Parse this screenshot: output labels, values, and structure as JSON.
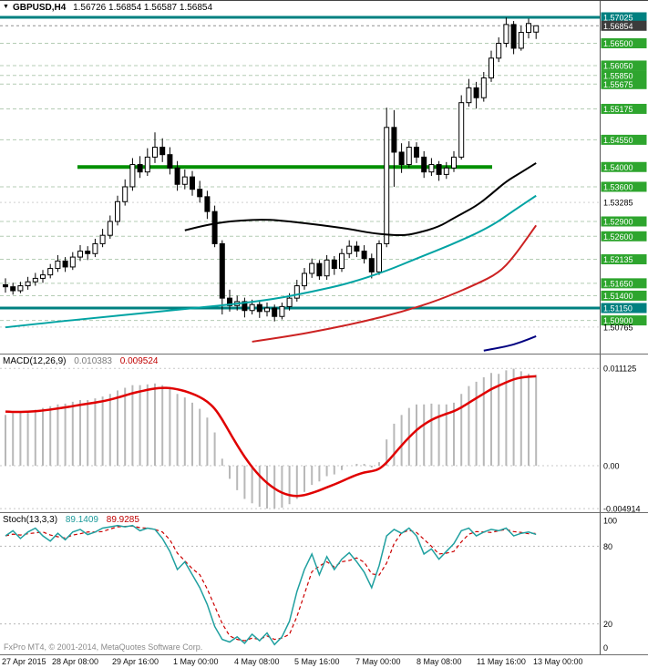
{
  "header": {
    "symbol_timeframe": "GBPUSD,H4",
    "ohlc_text": "1.56726 1.56854 1.56587 1.56854"
  },
  "footer": {
    "copyright": "FxPro MT4, © 2001-2014, MetaQuotes Software Corp."
  },
  "colors": {
    "teal_line": "#008080",
    "green_label": "#2ea52e",
    "green_line": "#009000",
    "grid_green": "#b4ccb4",
    "grid_plain": "#d0d0d0",
    "current_label_bg": "#3c3c3c",
    "candle_up": "#ffffff",
    "candle_down": "#000000",
    "macd_hist": "#b8b8b8",
    "macd_signal": "#e00000",
    "stoch_k": "#20a0a0",
    "stoch_d": "#cc0000",
    "ma_black": "#000000",
    "ma_teal": "#00a3a3",
    "ma_red": "#cc2222",
    "ma_blue": "#000080"
  },
  "x_axis": {
    "labels": [
      "27 Apr 2015",
      "28 Apr 08:00",
      "29 Apr 16:00",
      "1 May 00:00",
      "4 May 08:00",
      "5 May 16:00",
      "7 May 00:00",
      "8 May 08:00",
      "11 May 16:00",
      "13 May 00:00"
    ]
  },
  "chart_data": [
    {
      "type": "candlestick",
      "title": "GBPUSD,H4",
      "ohlc_current": {
        "open": 1.56726,
        "high": 1.56854,
        "low": 1.56587,
        "close": 1.56854
      },
      "levels": [
        {
          "label": "1.57025",
          "price": 1.57025,
          "style": "teal"
        },
        {
          "label": "1.56854",
          "price": 1.56854,
          "style": "current"
        },
        {
          "label": "1.56500",
          "price": 1.565,
          "style": "green"
        },
        {
          "label": "1.56050",
          "price": 1.5605,
          "style": "green"
        },
        {
          "label": "1.55850",
          "price": 1.5585,
          "style": "green"
        },
        {
          "label": "1.55675",
          "price": 1.55675,
          "style": "green"
        },
        {
          "label": "1.55175",
          "price": 1.55175,
          "style": "green"
        },
        {
          "label": "1.54550",
          "price": 1.5455,
          "style": "green"
        },
        {
          "label": "1.54000",
          "price": 1.54,
          "style": "green-thick"
        },
        {
          "label": "1.53600",
          "price": 1.536,
          "style": "green"
        },
        {
          "label": "1.53285",
          "price": 1.53285,
          "style": "plain"
        },
        {
          "label": "1.52900",
          "price": 1.529,
          "style": "green"
        },
        {
          "label": "1.52600",
          "price": 1.526,
          "style": "green"
        },
        {
          "label": "1.52135",
          "price": 1.52135,
          "style": "green"
        },
        {
          "label": "1.51650",
          "price": 1.5165,
          "style": "green"
        },
        {
          "label": "1.51400",
          "price": 1.514,
          "style": "green"
        },
        {
          "label": "1.51150",
          "price": 1.5115,
          "style": "teal"
        },
        {
          "label": "1.50900",
          "price": 1.509,
          "style": "green"
        },
        {
          "label": "1.50765",
          "price": 1.50765,
          "style": "plain"
        }
      ],
      "candles": [
        [
          1.5162,
          1.5175,
          1.5146,
          1.5158
        ],
        [
          1.5158,
          1.5166,
          1.5142,
          1.515
        ],
        [
          1.515,
          1.5168,
          1.5145,
          1.516
        ],
        [
          1.516,
          1.5178,
          1.5152,
          1.5168
        ],
        [
          1.5168,
          1.5186,
          1.516,
          1.5175
        ],
        [
          1.5175,
          1.5192,
          1.5166,
          1.5182
        ],
        [
          1.5182,
          1.5204,
          1.5175,
          1.5195
        ],
        [
          1.5195,
          1.5222,
          1.5188,
          1.521
        ],
        [
          1.521,
          1.5218,
          1.5188,
          1.5198
        ],
        [
          1.5198,
          1.5228,
          1.5192,
          1.5218
        ],
        [
          1.5218,
          1.5242,
          1.521,
          1.523
        ],
        [
          1.523,
          1.524,
          1.5212,
          1.5225
        ],
        [
          1.5225,
          1.5255,
          1.5218,
          1.5245
        ],
        [
          1.5245,
          1.5275,
          1.5238,
          1.5262
        ],
        [
          1.5262,
          1.5302,
          1.5255,
          1.529
        ],
        [
          1.529,
          1.5342,
          1.5282,
          1.533
        ],
        [
          1.533,
          1.5375,
          1.5322,
          1.536
        ],
        [
          1.536,
          1.5418,
          1.5352,
          1.5405
        ],
        [
          1.5405,
          1.5422,
          1.5378,
          1.539
        ],
        [
          1.539,
          1.5438,
          1.5382,
          1.542
        ],
        [
          1.542,
          1.547,
          1.5408,
          1.544
        ],
        [
          1.544,
          1.5458,
          1.541,
          1.5425
        ],
        [
          1.5425,
          1.544,
          1.5385,
          1.5398
        ],
        [
          1.5398,
          1.5412,
          1.5352,
          1.5365
        ],
        [
          1.5365,
          1.5395,
          1.5355,
          1.538
        ],
        [
          1.538,
          1.5392,
          1.5342,
          1.5355
        ],
        [
          1.5355,
          1.5372,
          1.5328,
          1.534
        ],
        [
          1.534,
          1.5352,
          1.5295,
          1.531
        ],
        [
          1.531,
          1.5322,
          1.5238,
          1.5245
        ],
        [
          1.5245,
          1.5252,
          1.5102,
          1.5135
        ],
        [
          1.5135,
          1.5152,
          1.5108,
          1.512
        ],
        [
          1.512,
          1.514,
          1.511,
          1.5128
        ],
        [
          1.5128,
          1.5136,
          1.5096,
          1.511
        ],
        [
          1.511,
          1.5132,
          1.5102,
          1.5122
        ],
        [
          1.5122,
          1.513,
          1.5095,
          1.5108
        ],
        [
          1.5108,
          1.5126,
          1.5098,
          1.5115
        ],
        [
          1.5115,
          1.5122,
          1.5088,
          1.5098
        ],
        [
          1.5098,
          1.5126,
          1.5092,
          1.5118
        ],
        [
          1.5118,
          1.5145,
          1.511,
          1.5135
        ],
        [
          1.5135,
          1.5172,
          1.5128,
          1.516
        ],
        [
          1.516,
          1.5196,
          1.5152,
          1.5185
        ],
        [
          1.5185,
          1.5215,
          1.5176,
          1.5205
        ],
        [
          1.5205,
          1.5212,
          1.5172,
          1.518
        ],
        [
          1.518,
          1.5222,
          1.5172,
          1.5212
        ],
        [
          1.5212,
          1.522,
          1.5182,
          1.5195
        ],
        [
          1.5195,
          1.5235,
          1.5188,
          1.5225
        ],
        [
          1.5225,
          1.5252,
          1.5216,
          1.524
        ],
        [
          1.524,
          1.525,
          1.5218,
          1.523
        ],
        [
          1.523,
          1.5242,
          1.5205,
          1.5215
        ],
        [
          1.5215,
          1.5225,
          1.5175,
          1.5188
        ],
        [
          1.5188,
          1.5252,
          1.5182,
          1.5245
        ],
        [
          1.5245,
          1.552,
          1.5238,
          1.548
        ],
        [
          1.548,
          1.5515,
          1.536,
          1.543
        ],
        [
          1.543,
          1.5448,
          1.5388,
          1.5405
        ],
        [
          1.5405,
          1.5452,
          1.5398,
          1.544
        ],
        [
          1.544,
          1.545,
          1.5408,
          1.542
        ],
        [
          1.542,
          1.5432,
          1.5378,
          1.539
        ],
        [
          1.539,
          1.5418,
          1.5382,
          1.5405
        ],
        [
          1.5405,
          1.5412,
          1.5372,
          1.5385
        ],
        [
          1.5385,
          1.541,
          1.5376,
          1.5398
        ],
        [
          1.5398,
          1.5432,
          1.539,
          1.542
        ],
        [
          1.542,
          1.5545,
          1.5415,
          1.553
        ],
        [
          1.553,
          1.5578,
          1.5522,
          1.556
        ],
        [
          1.556,
          1.5572,
          1.5518,
          1.554
        ],
        [
          1.554,
          1.5592,
          1.5532,
          1.558
        ],
        [
          1.558,
          1.5635,
          1.5572,
          1.562
        ],
        [
          1.562,
          1.5662,
          1.5612,
          1.565
        ],
        [
          1.565,
          1.5702,
          1.5642,
          1.5688
        ],
        [
          1.5688,
          1.5695,
          1.5628,
          1.564
        ],
        [
          1.564,
          1.5685,
          1.5635,
          1.5672
        ],
        [
          1.5672,
          1.57,
          1.566,
          1.569
        ],
        [
          1.56726,
          1.56854,
          1.56587,
          1.56854
        ]
      ],
      "ma_lines": [
        {
          "name": "ma-slow-black",
          "color_key": "ma_black",
          "width": 2,
          "points": [
            [
              24,
              1.5272
            ],
            [
              27,
              1.5284
            ],
            [
              31,
              1.5292
            ],
            [
              35,
              1.5294
            ],
            [
              38,
              1.529
            ],
            [
              42,
              1.5283
            ],
            [
              46,
              1.5275
            ],
            [
              49,
              1.5266
            ],
            [
              53,
              1.5261
            ],
            [
              55,
              1.5266
            ],
            [
              58,
              1.5279
            ],
            [
              60,
              1.5297
            ],
            [
              63,
              1.5321
            ],
            [
              65,
              1.5345
            ],
            [
              67,
              1.5371
            ],
            [
              69,
              1.5389
            ],
            [
              71,
              1.5408
            ]
          ]
        },
        {
          "name": "ma-medium-teal",
          "color_key": "ma_teal",
          "width": 2,
          "points": [
            [
              0,
              1.5076
            ],
            [
              6,
              1.5086
            ],
            [
              12,
              1.5095
            ],
            [
              18,
              1.5104
            ],
            [
              24,
              1.5113
            ],
            [
              30,
              1.5122
            ],
            [
              36,
              1.5133
            ],
            [
              41,
              1.5148
            ],
            [
              46,
              1.5165
            ],
            [
              51,
              1.519
            ],
            [
              55,
              1.5215
            ],
            [
              60,
              1.5245
            ],
            [
              65,
              1.528
            ],
            [
              68,
              1.5312
            ],
            [
              71,
              1.5342
            ]
          ]
        },
        {
          "name": "ma-slow-red",
          "color_key": "ma_red",
          "width": 2,
          "points": [
            [
              33,
              1.5047
            ],
            [
              38,
              1.5058
            ],
            [
              43,
              1.5072
            ],
            [
              48,
              1.5088
            ],
            [
              53,
              1.5107
            ],
            [
              58,
              1.5131
            ],
            [
              63,
              1.5163
            ],
            [
              66,
              1.5186
            ],
            [
              68,
              1.5218
            ],
            [
              71,
              1.5282
            ]
          ]
        },
        {
          "name": "ma-long-blue",
          "color_key": "ma_blue",
          "width": 2,
          "points": [
            [
              64,
              1.5029
            ],
            [
              67,
              1.5037
            ],
            [
              69,
              1.5046
            ],
            [
              71,
              1.5058
            ]
          ]
        }
      ]
    },
    {
      "type": "macd",
      "label": "MACD(12,26,9)",
      "current": {
        "macd": "0.010383",
        "signal": "0.009524"
      },
      "axis_labels": [
        "0.011125",
        "0.00",
        "-0.004914"
      ],
      "axis_values": [
        0.011125,
        0,
        -0.004914
      ],
      "histogram": [
        0.0058,
        0.006,
        0.0061,
        0.0063,
        0.0064,
        0.0066,
        0.0068,
        0.007,
        0.0071,
        0.0073,
        0.0075,
        0.0075,
        0.0077,
        0.0079,
        0.0082,
        0.0086,
        0.0089,
        0.0092,
        0.0092,
        0.0093,
        0.0094,
        0.0092,
        0.0088,
        0.0082,
        0.0078,
        0.0072,
        0.0065,
        0.0055,
        0.0038,
        0.0008,
        -0.0015,
        -0.0028,
        -0.0038,
        -0.0043,
        -0.0047,
        -0.0049,
        -0.00491,
        -0.0048,
        -0.0044,
        -0.0038,
        -0.003,
        -0.0022,
        -0.0018,
        -0.0012,
        -0.001,
        -0.0005,
        0.0,
        0.0002,
        0.0002,
        -0.0002,
        0.0004,
        0.003,
        0.0048,
        0.0058,
        0.0066,
        0.007,
        0.007,
        0.0071,
        0.007,
        0.007,
        0.0072,
        0.0082,
        0.0091,
        0.0096,
        0.0101,
        0.0106,
        0.0105,
        0.0109,
        0.0111,
        0.0108,
        0.0105,
        0.010383
      ]
    },
    {
      "type": "stochastic",
      "label": "Stoch(13,3,3)",
      "current": {
        "k": "89.1409",
        "d": "89.9285"
      },
      "axis_labels": [
        "100",
        "80",
        "20",
        "0"
      ],
      "level_lines": [
        80,
        20
      ],
      "k": [
        88,
        92,
        86,
        91,
        94,
        88,
        84,
        90,
        85,
        91,
        93,
        89,
        91,
        94,
        95,
        96,
        95,
        96,
        92,
        94,
        93,
        86,
        76,
        62,
        68,
        58,
        48,
        35,
        18,
        8,
        6,
        10,
        5,
        12,
        7,
        13,
        4,
        10,
        22,
        45,
        62,
        74,
        58,
        72,
        62,
        70,
        75,
        68,
        60,
        48,
        65,
        88,
        93,
        90,
        94,
        88,
        74,
        78,
        70,
        76,
        82,
        92,
        94,
        88,
        91,
        93,
        92,
        94,
        88,
        90,
        91,
        89.1409
      ]
    }
  ]
}
